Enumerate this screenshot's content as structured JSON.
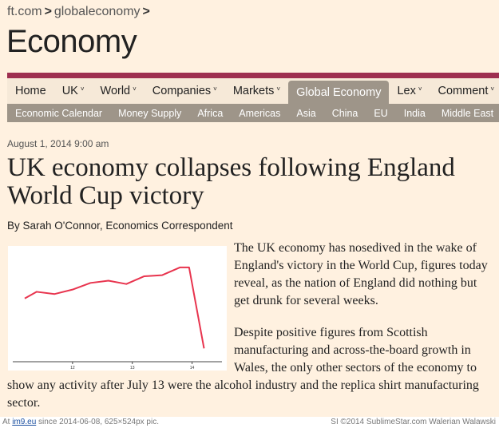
{
  "breadcrumb": {
    "site": "ft.com",
    "section": "globaleconomy",
    "sep": ">"
  },
  "page_title": "Economy",
  "nav": {
    "primary": [
      {
        "label": "Home",
        "caret": ""
      },
      {
        "label": "UK",
        "caret": "˅"
      },
      {
        "label": "World",
        "caret": "˅"
      },
      {
        "label": "Companies",
        "caret": "˅"
      },
      {
        "label": "Markets",
        "caret": "˅"
      },
      {
        "label": "Global Economy",
        "caret": "",
        "active": true
      },
      {
        "label": "Lex",
        "caret": "˅"
      },
      {
        "label": "Comment",
        "caret": "˅"
      }
    ],
    "secondary": [
      "Economic Calendar",
      "Money Supply",
      "Africa",
      "Americas",
      "Asia",
      "China",
      "EU",
      "India",
      "Middle East"
    ]
  },
  "article": {
    "timestamp": "August 1, 2014 9:00 am",
    "headline": "UK economy collapses following England World Cup victory",
    "byline": "By Sarah O'Connor, Economics Correspondent",
    "paragraphs": [
      "The UK economy has nosedived in the wake of England's victory in the World Cup, figures today reveal, as the nation of England did nothing but get drunk for several weeks.",
      "Despite positive figures from Scottish manufacturing and across-the-board growth in Wales, the only other sectors of the economy to show any activity after July 13 were the alcohol industry and the replica shirt manufacturing sector."
    ]
  },
  "chart_data": {
    "type": "line",
    "x_ticks": [
      "12",
      "13",
      "14"
    ],
    "x": [
      11.2,
      11.4,
      11.7,
      12.0,
      12.3,
      12.6,
      12.9,
      13.2,
      13.5,
      13.8,
      13.95,
      14.2
    ],
    "values": [
      57,
      63,
      61,
      65,
      71,
      73,
      70,
      77,
      78,
      85,
      85,
      12
    ],
    "xlim": [
      11.0,
      14.5
    ],
    "ylim": [
      0,
      100
    ],
    "color": "#e8344e",
    "title": "",
    "xlabel": "",
    "ylabel": ""
  },
  "footer": {
    "at": "At",
    "site_link": "im9.eu",
    "since": "since 2014-06-08, 625×524px pic.",
    "credit": "SI ©2014 SublimeStar.com Walerian Walawski"
  }
}
